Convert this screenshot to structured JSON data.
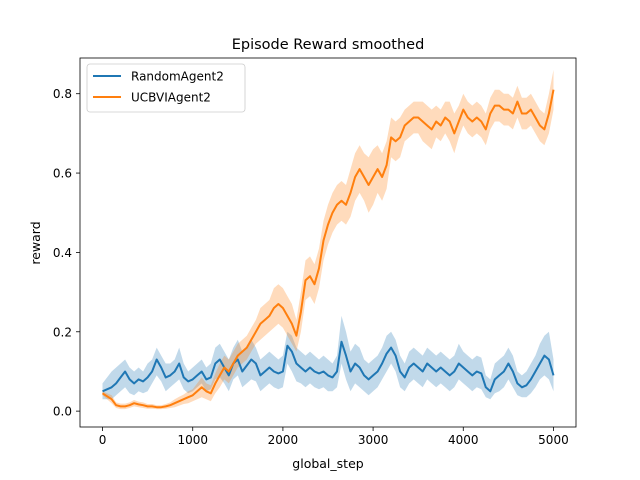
{
  "chart_data": {
    "type": "line",
    "title": "Episode Reward smoothed",
    "xlabel": "global_step",
    "ylabel": "reward",
    "xlim": [
      -250,
      5250
    ],
    "ylim": [
      -0.04,
      0.89
    ],
    "xticks": [
      0,
      1000,
      2000,
      3000,
      4000,
      5000
    ],
    "yticks": [
      0.0,
      0.2,
      0.4,
      0.6,
      0.8
    ],
    "grid": false,
    "legend_position": "top-left",
    "series": [
      {
        "name": "RandomAgent2",
        "color": "#1f77b4",
        "x": [
          0,
          100,
          150,
          200,
          250,
          300,
          350,
          400,
          450,
          500,
          550,
          600,
          650,
          700,
          750,
          800,
          850,
          900,
          950,
          1000,
          1050,
          1100,
          1150,
          1200,
          1250,
          1300,
          1350,
          1400,
          1450,
          1500,
          1550,
          1600,
          1650,
          1700,
          1750,
          1800,
          1850,
          1900,
          1950,
          2000,
          2050,
          2100,
          2150,
          2200,
          2250,
          2300,
          2350,
          2400,
          2450,
          2500,
          2550,
          2600,
          2650,
          2700,
          2750,
          2800,
          2850,
          2900,
          2950,
          3000,
          3050,
          3100,
          3150,
          3200,
          3250,
          3300,
          3350,
          3400,
          3450,
          3500,
          3550,
          3600,
          3650,
          3700,
          3750,
          3800,
          3850,
          3900,
          3950,
          4000,
          4050,
          4100,
          4150,
          4200,
          4250,
          4300,
          4350,
          4400,
          4450,
          4500,
          4550,
          4600,
          4650,
          4700,
          4750,
          4800,
          4850,
          4900,
          4950,
          5000
        ],
        "values": [
          0.05,
          0.06,
          0.07,
          0.085,
          0.1,
          0.08,
          0.07,
          0.08,
          0.075,
          0.085,
          0.1,
          0.13,
          0.11,
          0.085,
          0.09,
          0.1,
          0.12,
          0.085,
          0.075,
          0.08,
          0.09,
          0.1,
          0.08,
          0.085,
          0.12,
          0.13,
          0.11,
          0.09,
          0.12,
          0.13,
          0.1,
          0.115,
          0.13,
          0.12,
          0.09,
          0.1,
          0.11,
          0.1,
          0.095,
          0.1,
          0.165,
          0.15,
          0.12,
          0.11,
          0.1,
          0.11,
          0.1,
          0.095,
          0.1,
          0.09,
          0.085,
          0.1,
          0.175,
          0.14,
          0.1,
          0.12,
          0.11,
          0.09,
          0.08,
          0.09,
          0.1,
          0.12,
          0.145,
          0.16,
          0.14,
          0.1,
          0.085,
          0.11,
          0.12,
          0.11,
          0.1,
          0.12,
          0.11,
          0.1,
          0.11,
          0.1,
          0.09,
          0.1,
          0.12,
          0.11,
          0.1,
          0.09,
          0.1,
          0.095,
          0.06,
          0.05,
          0.08,
          0.09,
          0.1,
          0.12,
          0.1,
          0.07,
          0.06,
          0.065,
          0.08,
          0.1,
          0.12,
          0.14,
          0.13,
          0.09
        ],
        "lower": [
          0.03,
          0.03,
          0.04,
          0.05,
          0.06,
          0.045,
          0.04,
          0.05,
          0.045,
          0.05,
          0.07,
          0.09,
          0.075,
          0.05,
          0.06,
          0.07,
          0.08,
          0.055,
          0.045,
          0.05,
          0.06,
          0.07,
          0.05,
          0.055,
          0.08,
          0.085,
          0.07,
          0.05,
          0.08,
          0.09,
          0.06,
          0.07,
          0.08,
          0.075,
          0.05,
          0.06,
          0.07,
          0.06,
          0.055,
          0.06,
          0.12,
          0.1,
          0.075,
          0.07,
          0.06,
          0.07,
          0.06,
          0.055,
          0.06,
          0.05,
          0.05,
          0.06,
          0.12,
          0.08,
          0.05,
          0.07,
          0.06,
          0.05,
          0.04,
          0.05,
          0.06,
          0.08,
          0.1,
          0.12,
          0.1,
          0.06,
          0.05,
          0.07,
          0.08,
          0.07,
          0.06,
          0.08,
          0.07,
          0.06,
          0.07,
          0.06,
          0.05,
          0.06,
          0.08,
          0.07,
          0.06,
          0.05,
          0.06,
          0.055,
          0.035,
          0.03,
          0.045,
          0.05,
          0.06,
          0.08,
          0.06,
          0.04,
          0.035,
          0.035,
          0.045,
          0.06,
          0.08,
          0.09,
          0.08,
          0.05
        ],
        "upper": [
          0.07,
          0.1,
          0.11,
          0.12,
          0.13,
          0.11,
          0.1,
          0.11,
          0.1,
          0.12,
          0.13,
          0.16,
          0.14,
          0.12,
          0.12,
          0.13,
          0.16,
          0.12,
          0.1,
          0.11,
          0.12,
          0.13,
          0.11,
          0.12,
          0.16,
          0.17,
          0.15,
          0.13,
          0.16,
          0.18,
          0.15,
          0.16,
          0.18,
          0.16,
          0.13,
          0.14,
          0.15,
          0.14,
          0.13,
          0.14,
          0.2,
          0.19,
          0.16,
          0.15,
          0.14,
          0.15,
          0.14,
          0.13,
          0.14,
          0.13,
          0.12,
          0.14,
          0.24,
          0.2,
          0.15,
          0.17,
          0.16,
          0.13,
          0.12,
          0.13,
          0.14,
          0.16,
          0.19,
          0.2,
          0.18,
          0.14,
          0.12,
          0.15,
          0.16,
          0.15,
          0.14,
          0.16,
          0.15,
          0.14,
          0.15,
          0.14,
          0.13,
          0.14,
          0.17,
          0.15,
          0.14,
          0.13,
          0.14,
          0.135,
          0.09,
          0.08,
          0.12,
          0.13,
          0.14,
          0.16,
          0.14,
          0.1,
          0.09,
          0.1,
          0.12,
          0.14,
          0.17,
          0.19,
          0.2,
          0.13
        ]
      },
      {
        "name": "UCBVIAgent2",
        "color": "#ff7f0e",
        "x": [
          0,
          100,
          150,
          200,
          250,
          300,
          350,
          400,
          450,
          500,
          550,
          600,
          650,
          700,
          750,
          800,
          850,
          900,
          950,
          1000,
          1050,
          1100,
          1150,
          1200,
          1250,
          1300,
          1350,
          1400,
          1450,
          1500,
          1550,
          1600,
          1650,
          1700,
          1750,
          1800,
          1850,
          1900,
          1950,
          2000,
          2050,
          2100,
          2150,
          2200,
          2250,
          2300,
          2350,
          2400,
          2450,
          2500,
          2550,
          2600,
          2650,
          2700,
          2750,
          2800,
          2850,
          2900,
          2950,
          3000,
          3050,
          3100,
          3150,
          3200,
          3250,
          3300,
          3350,
          3400,
          3450,
          3500,
          3550,
          3600,
          3650,
          3700,
          3750,
          3800,
          3850,
          3900,
          3950,
          4000,
          4050,
          4100,
          4150,
          4200,
          4250,
          4300,
          4350,
          4400,
          4450,
          4500,
          4550,
          4600,
          4650,
          4700,
          4750,
          4800,
          4850,
          4900,
          4950,
          5000
        ],
        "values": [
          0.045,
          0.03,
          0.015,
          0.012,
          0.012,
          0.015,
          0.02,
          0.017,
          0.015,
          0.012,
          0.012,
          0.01,
          0.01,
          0.012,
          0.015,
          0.02,
          0.025,
          0.03,
          0.035,
          0.04,
          0.05,
          0.06,
          0.05,
          0.045,
          0.07,
          0.09,
          0.11,
          0.1,
          0.12,
          0.14,
          0.15,
          0.16,
          0.18,
          0.2,
          0.22,
          0.23,
          0.24,
          0.26,
          0.27,
          0.26,
          0.24,
          0.22,
          0.19,
          0.25,
          0.33,
          0.34,
          0.32,
          0.36,
          0.43,
          0.47,
          0.5,
          0.52,
          0.53,
          0.52,
          0.55,
          0.59,
          0.61,
          0.59,
          0.57,
          0.59,
          0.61,
          0.59,
          0.62,
          0.69,
          0.68,
          0.69,
          0.72,
          0.73,
          0.74,
          0.74,
          0.73,
          0.72,
          0.71,
          0.73,
          0.72,
          0.74,
          0.73,
          0.7,
          0.73,
          0.76,
          0.74,
          0.73,
          0.74,
          0.73,
          0.71,
          0.75,
          0.77,
          0.77,
          0.76,
          0.76,
          0.75,
          0.78,
          0.75,
          0.75,
          0.76,
          0.74,
          0.72,
          0.71,
          0.75,
          0.81
        ],
        "lower": [
          0.04,
          0.02,
          0.008,
          0.005,
          0.005,
          0.008,
          0.012,
          0.01,
          0.008,
          0.006,
          0.006,
          0.005,
          0.005,
          0.006,
          0.008,
          0.01,
          0.014,
          0.018,
          0.02,
          0.025,
          0.03,
          0.035,
          0.03,
          0.025,
          0.045,
          0.06,
          0.08,
          0.07,
          0.09,
          0.11,
          0.12,
          0.13,
          0.15,
          0.17,
          0.18,
          0.19,
          0.2,
          0.21,
          0.22,
          0.21,
          0.19,
          0.17,
          0.15,
          0.2,
          0.28,
          0.29,
          0.27,
          0.31,
          0.38,
          0.42,
          0.45,
          0.47,
          0.48,
          0.47,
          0.49,
          0.53,
          0.55,
          0.53,
          0.5,
          0.52,
          0.55,
          0.53,
          0.56,
          0.64,
          0.63,
          0.64,
          0.68,
          0.69,
          0.7,
          0.7,
          0.68,
          0.67,
          0.66,
          0.69,
          0.68,
          0.7,
          0.68,
          0.65,
          0.69,
          0.72,
          0.7,
          0.69,
          0.7,
          0.69,
          0.67,
          0.71,
          0.73,
          0.73,
          0.72,
          0.72,
          0.71,
          0.74,
          0.71,
          0.71,
          0.72,
          0.7,
          0.68,
          0.67,
          0.7,
          0.76
        ],
        "upper": [
          0.05,
          0.04,
          0.022,
          0.019,
          0.019,
          0.022,
          0.028,
          0.024,
          0.022,
          0.018,
          0.018,
          0.015,
          0.015,
          0.018,
          0.022,
          0.03,
          0.036,
          0.042,
          0.05,
          0.055,
          0.07,
          0.085,
          0.07,
          0.065,
          0.095,
          0.12,
          0.14,
          0.13,
          0.15,
          0.17,
          0.18,
          0.19,
          0.21,
          0.23,
          0.26,
          0.27,
          0.28,
          0.31,
          0.32,
          0.31,
          0.29,
          0.27,
          0.23,
          0.3,
          0.38,
          0.39,
          0.37,
          0.41,
          0.48,
          0.52,
          0.55,
          0.57,
          0.58,
          0.57,
          0.61,
          0.65,
          0.67,
          0.65,
          0.64,
          0.66,
          0.67,
          0.65,
          0.68,
          0.74,
          0.73,
          0.74,
          0.76,
          0.77,
          0.78,
          0.78,
          0.78,
          0.77,
          0.76,
          0.77,
          0.76,
          0.78,
          0.78,
          0.75,
          0.77,
          0.8,
          0.78,
          0.77,
          0.78,
          0.77,
          0.75,
          0.79,
          0.81,
          0.81,
          0.8,
          0.8,
          0.79,
          0.82,
          0.79,
          0.79,
          0.8,
          0.78,
          0.76,
          0.75,
          0.8,
          0.86
        ]
      }
    ]
  }
}
